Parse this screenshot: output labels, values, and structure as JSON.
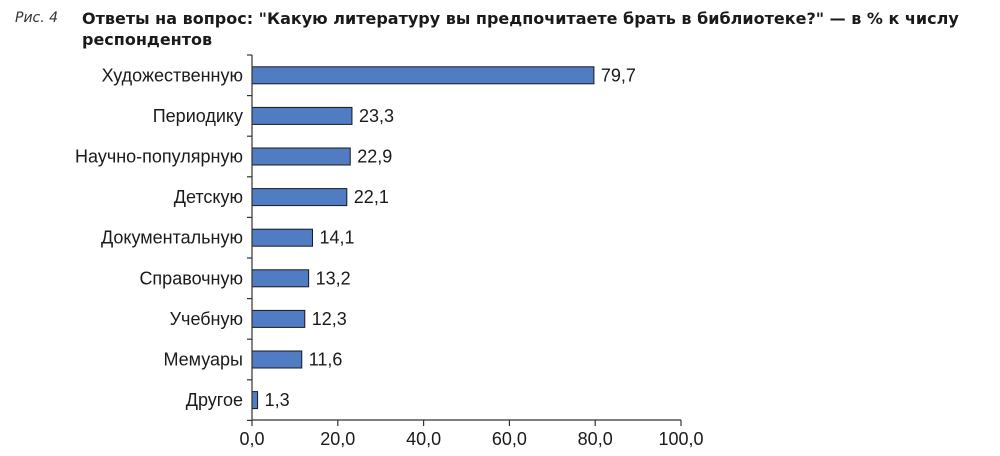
{
  "figure": {
    "label": "Рис. 4",
    "title": "Ответы на вопрос: \"Какую литературу вы предпочитаете брать в библиотеке?\" — в % к числу респондентов"
  },
  "chart_data": {
    "type": "bar",
    "orientation": "horizontal",
    "categories": [
      "Художественную",
      "Периодику",
      "Научно-популярную",
      "Детскую",
      "Документальную",
      "Справочную",
      "Учебную",
      "Мемуары",
      "Другое"
    ],
    "values": [
      79.7,
      23.3,
      22.9,
      22.1,
      14.1,
      13.2,
      12.3,
      11.6,
      1.3
    ],
    "value_labels": [
      "79,7",
      "23,3",
      "22,9",
      "22,1",
      "14,1",
      "13,2",
      "12,3",
      "11,6",
      "1,3"
    ],
    "xlim": [
      0,
      100
    ],
    "x_ticks": [
      0,
      20,
      40,
      60,
      80,
      100
    ],
    "x_tick_labels": [
      "0,0",
      "20,0",
      "40,0",
      "60,0",
      "80,0",
      "100,0"
    ],
    "grid": false,
    "legend": "none",
    "bar_color": "#4f7cc3"
  }
}
